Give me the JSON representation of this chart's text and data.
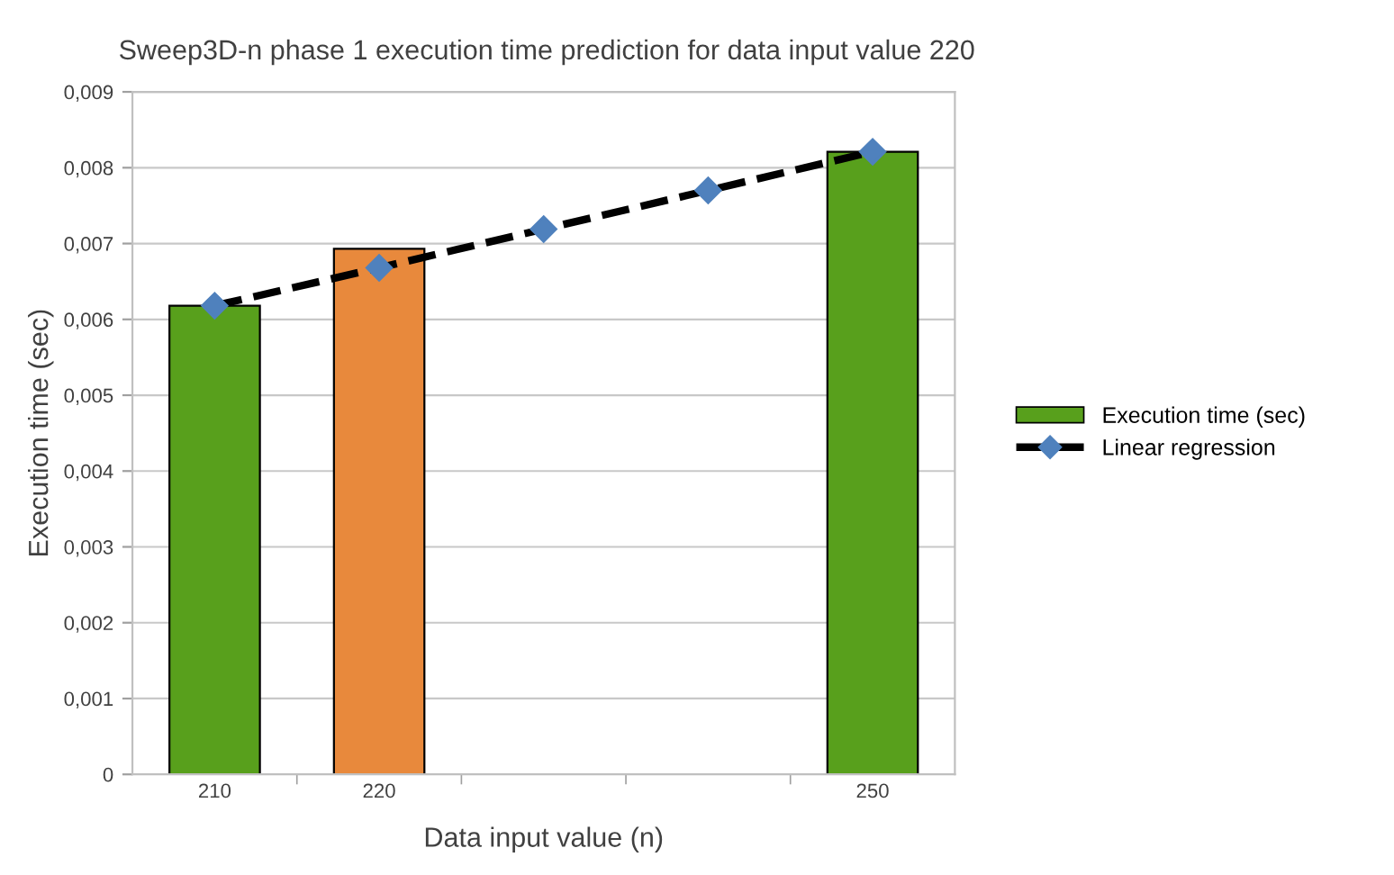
{
  "chart_data": {
    "type": "bar",
    "title": "Sweep3D-n phase 1 execution time prediction for data input value 220",
    "xlabel": "Data input value (n)",
    "ylabel": "Execution time (sec)",
    "categories": [
      "210",
      "220",
      null,
      null,
      "250"
    ],
    "series": [
      {
        "name": "Execution time (sec)",
        "color": "#58a01c",
        "colors": [
          "#58a01c",
          "#e8893c",
          null,
          null,
          "#58a01c"
        ],
        "values": [
          0.00618,
          0.00693,
          null,
          null,
          0.00821
        ]
      },
      {
        "name": "Linear regression",
        "type": "line",
        "color": "#000000",
        "marker": "diamond",
        "line_style": "dashed",
        "values": [
          0.00618,
          0.00668,
          0.00719,
          0.0077,
          0.00821
        ]
      }
    ],
    "ylim": [
      0,
      0.009
    ],
    "yticks": [
      0,
      {
        "value": 0.001,
        "label": "0,001"
      },
      {
        "value": 0.002,
        "label": "0,002"
      },
      {
        "value": 0.003,
        "label": "0,003"
      },
      {
        "value": 0.004,
        "label": "0,004"
      },
      {
        "value": 0.005,
        "label": "0,005"
      },
      {
        "value": 0.006,
        "label": "0,006"
      },
      {
        "value": 0.007,
        "label": "0,007"
      },
      {
        "value": 0.008,
        "label": "0,008"
      },
      {
        "value": 0.009,
        "label": "0,009"
      }
    ],
    "grid": "y",
    "legend": "right"
  }
}
